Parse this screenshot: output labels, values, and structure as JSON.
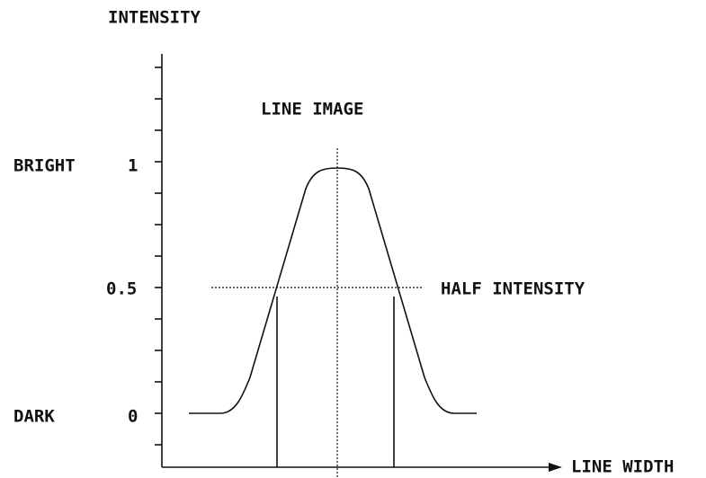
{
  "axis": {
    "y_label": "INTENSITY",
    "x_label": "LINE WIDTH"
  },
  "title": "LINE IMAGE",
  "levels": [
    {
      "name": "BRIGHT",
      "value": "1"
    },
    {
      "name": "",
      "value": "0.5"
    },
    {
      "name": "DARK",
      "value": "0"
    }
  ],
  "annotation": "HALF INTENSITY"
}
